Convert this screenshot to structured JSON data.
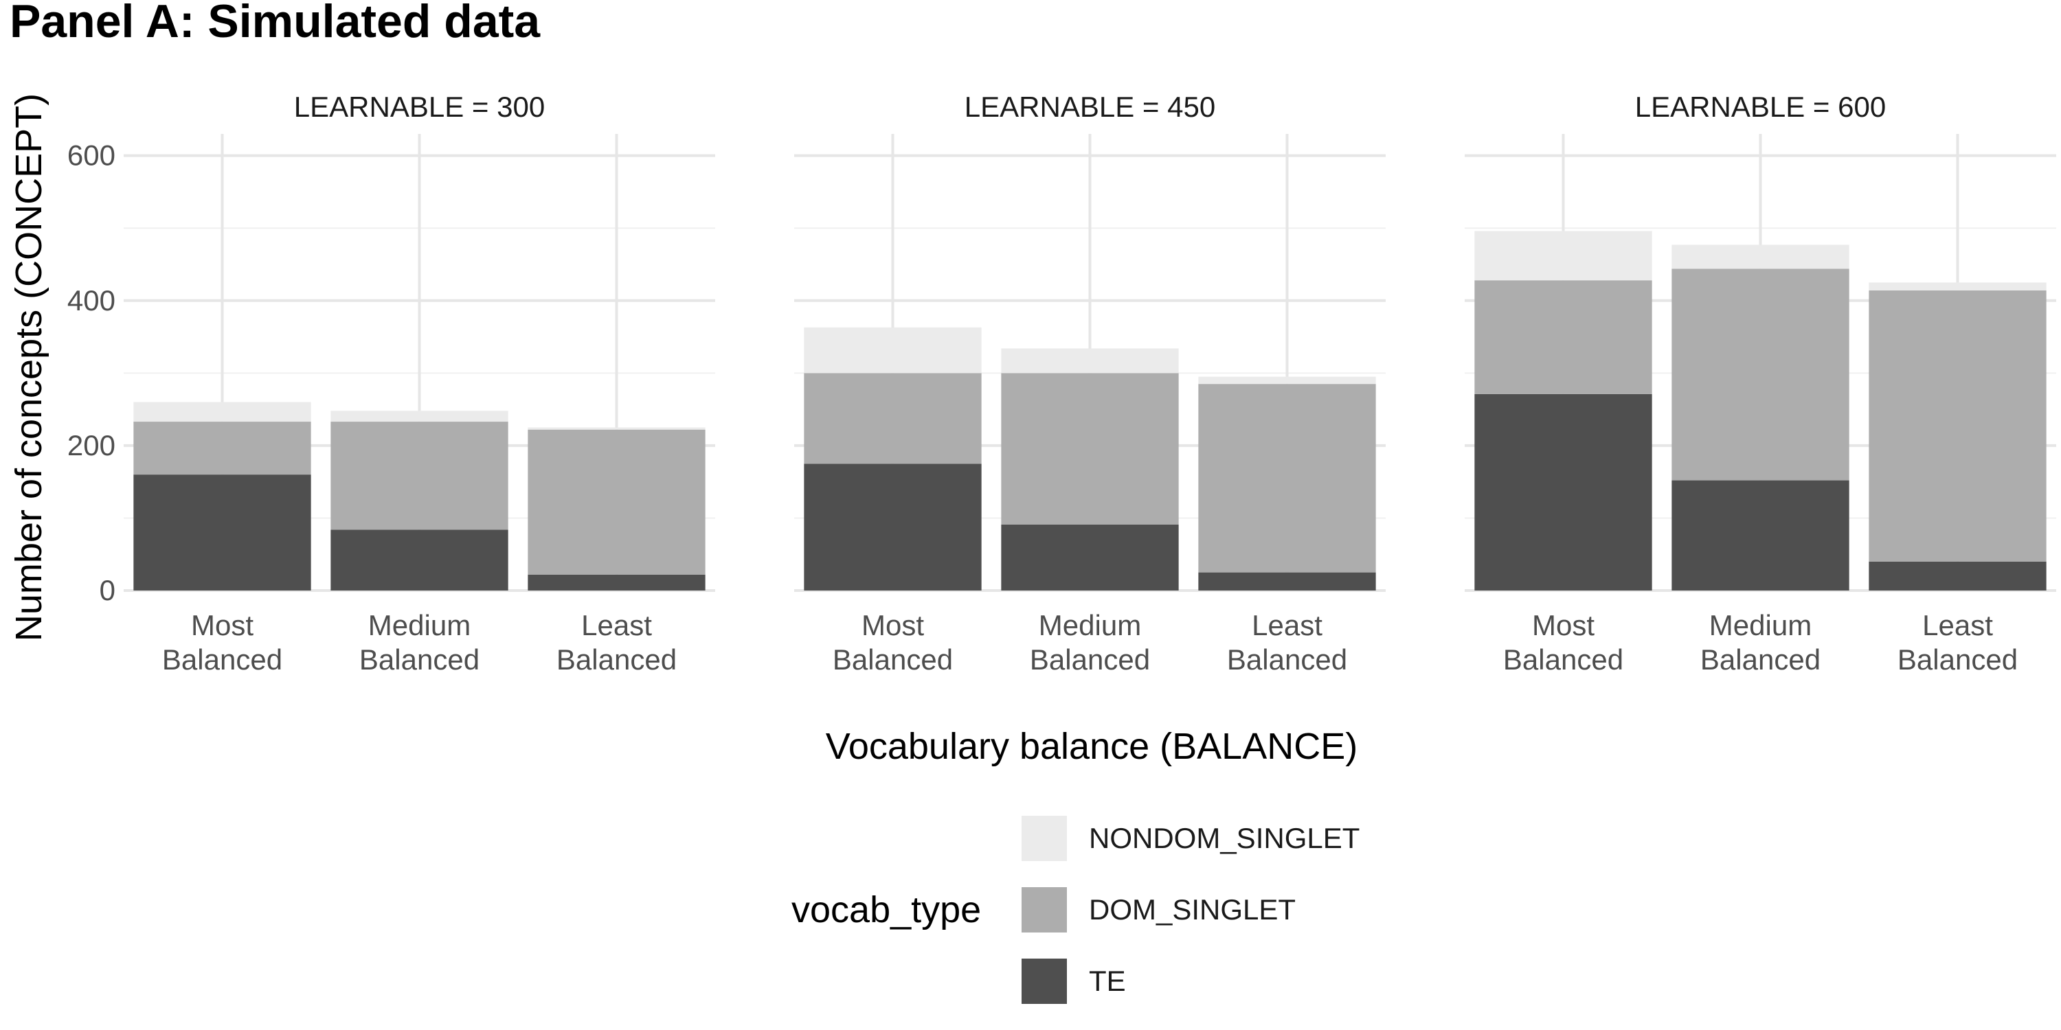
{
  "chart_data": {
    "type": "bar",
    "stacked": true,
    "title": "Panel A: Simulated data",
    "xlabel": "Vocabulary balance (BALANCE)",
    "ylabel": "Number of concepts (CONCEPT)",
    "ylim": [
      0,
      630
    ],
    "yticks": [
      0,
      200,
      400,
      600
    ],
    "grid": true,
    "categories": [
      "Most\nBalanced",
      "Medium\nBalanced",
      "Least\nBalanced"
    ],
    "legend": {
      "title": "vocab_type",
      "position": "bottom",
      "entries": [
        {
          "name": "NONDOM_SINGLET",
          "color": "#ebebeb"
        },
        {
          "name": "DOM_SINGLET",
          "color": "#adadad"
        },
        {
          "name": "TE",
          "color": "#4f4f4f"
        }
      ]
    },
    "stack_order": [
      "TE",
      "DOM_SINGLET",
      "NONDOM_SINGLET"
    ],
    "panels": [
      {
        "label": "LEARNABLE = 300",
        "series": [
          {
            "name": "TE",
            "values": [
              160,
              84,
              22
            ]
          },
          {
            "name": "DOM_SINGLET",
            "values": [
              73,
              149,
              200
            ]
          },
          {
            "name": "NONDOM_SINGLET",
            "values": [
              27,
              15,
              3
            ]
          }
        ]
      },
      {
        "label": "LEARNABLE = 450",
        "series": [
          {
            "name": "TE",
            "values": [
              175,
              91,
              25
            ]
          },
          {
            "name": "DOM_SINGLET",
            "values": [
              125,
              209,
              260
            ]
          },
          {
            "name": "NONDOM_SINGLET",
            "values": [
              63,
              34,
              10
            ]
          }
        ]
      },
      {
        "label": "LEARNABLE = 600",
        "series": [
          {
            "name": "TE",
            "values": [
              271,
              152,
              40
            ]
          },
          {
            "name": "DOM_SINGLET",
            "values": [
              157,
              292,
              374
            ]
          },
          {
            "name": "NONDOM_SINGLET",
            "values": [
              68,
              33,
              11
            ]
          }
        ]
      }
    ]
  }
}
